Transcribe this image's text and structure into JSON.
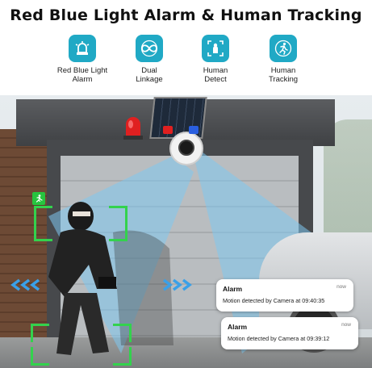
{
  "title": "Red Blue Light Alarm & Human Tracking",
  "features": [
    {
      "label_line1": "Red Blue Light",
      "label_line2": "Alarm",
      "icon": "siren-icon"
    },
    {
      "label_line1": "Dual",
      "label_line2": "Linkage",
      "icon": "infinity-icon"
    },
    {
      "label_line1": "Human",
      "label_line2": "Detect",
      "icon": "person-detect-icon"
    },
    {
      "label_line1": "Human",
      "label_line2": "Tracking",
      "icon": "running-person-icon"
    }
  ],
  "notifications": [
    {
      "title": "Alarm",
      "time": "now",
      "body": "Motion detected by Camera at 09:40:35"
    },
    {
      "title": "Alarm",
      "time": "now",
      "body": "Motion detected by Camera at 09:39:12"
    }
  ],
  "colors": {
    "accent": "#20a9c5",
    "tracking_box": "#33d24d",
    "beam": "#7fc8f0",
    "siren_red": "#e02020",
    "siren_blue": "#2a5fe0"
  }
}
